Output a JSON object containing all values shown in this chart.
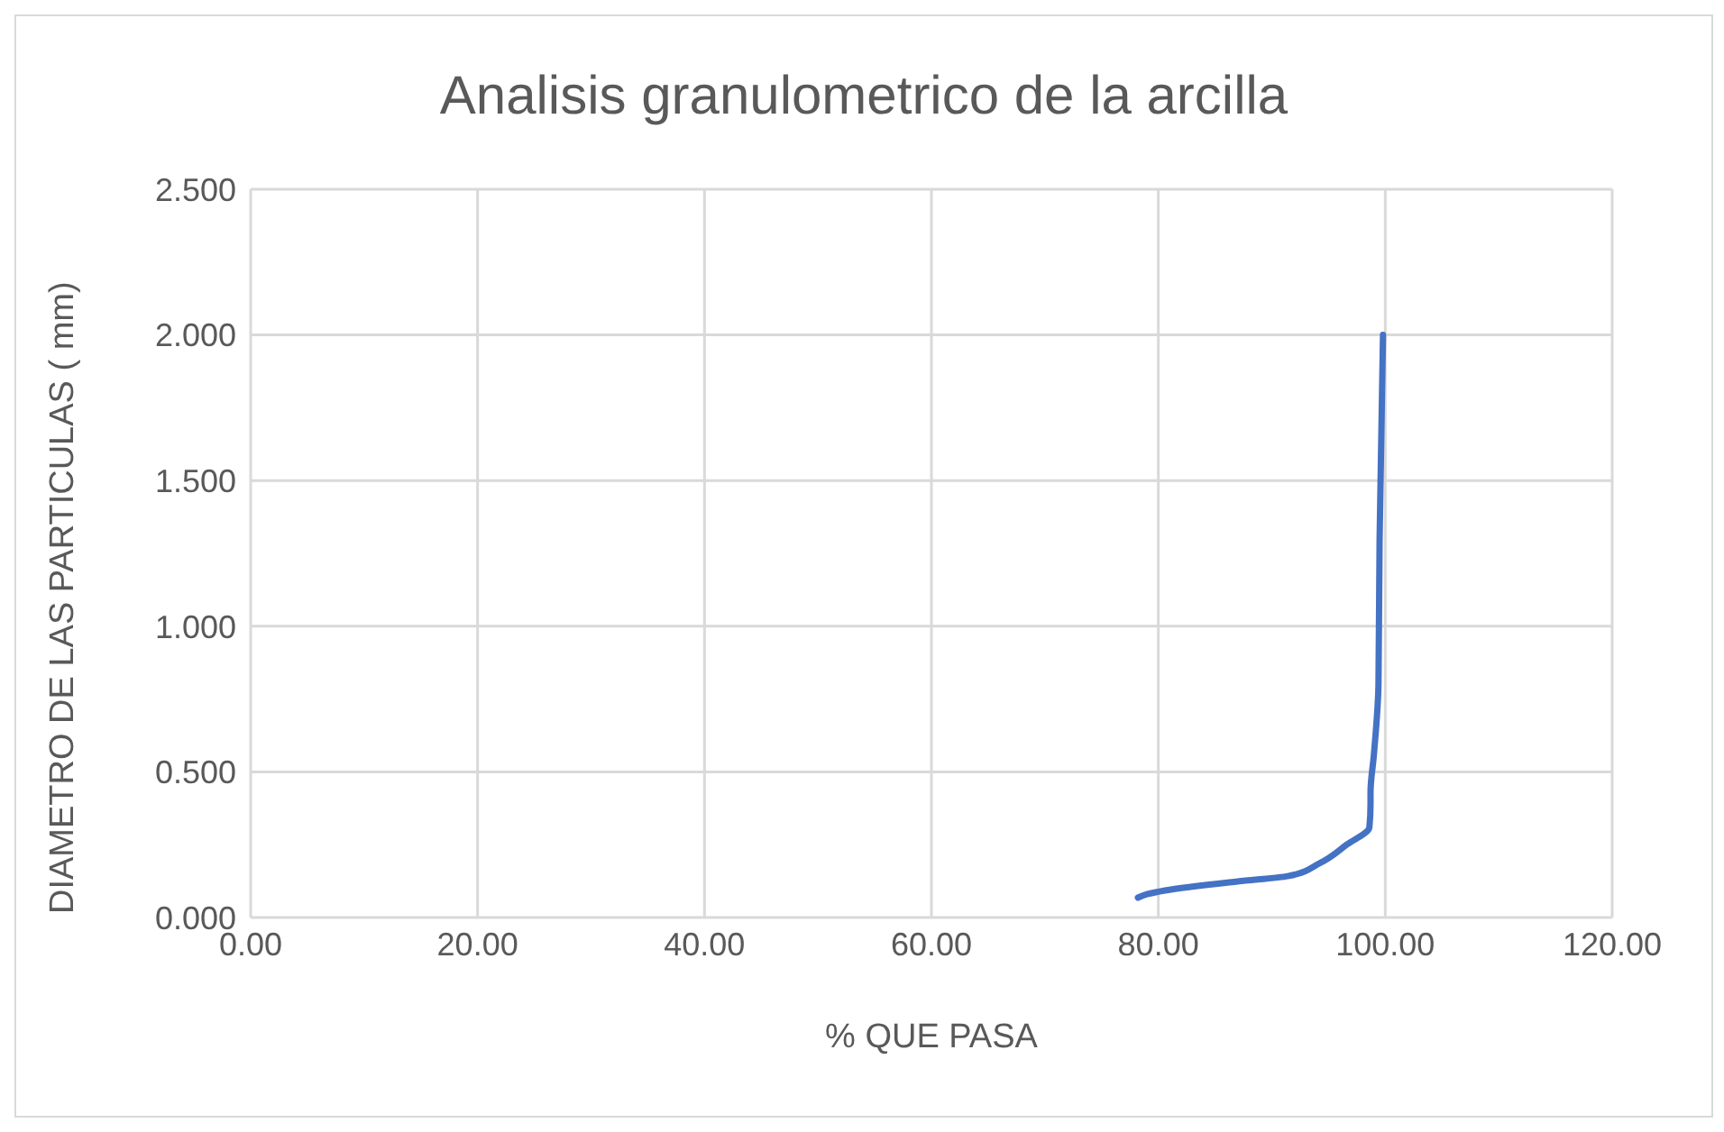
{
  "chart_data": {
    "type": "line",
    "title": "Analisis granulometrico de la arcilla",
    "xlabel": "% QUE PASA",
    "ylabel": "DIAMETRO DE LAS PARTICULAS ( mm)",
    "series": [
      {
        "color": "#4472c4",
        "x": [
          78.2,
          79.0,
          80.6,
          87.0,
          91.4,
          94.2,
          96.6,
          98.6,
          98.7,
          98.7,
          99.0,
          99.4,
          99.5,
          99.8
        ],
        "values": [
          0.068,
          0.08,
          0.093,
          0.124,
          0.142,
          0.186,
          0.25,
          0.31,
          0.39,
          0.43,
          0.56,
          0.8,
          1.3,
          2.0
        ]
      }
    ],
    "xlim": [
      0,
      120
    ],
    "xticks": [
      {
        "value": 0,
        "label": "0.00"
      },
      {
        "value": 20,
        "label": "20.00"
      },
      {
        "value": 40,
        "label": "40.00"
      },
      {
        "value": 60,
        "label": "60.00"
      },
      {
        "value": 80,
        "label": "80.00"
      },
      {
        "value": 100,
        "label": "100.00"
      },
      {
        "value": 120,
        "label": "120.00"
      }
    ],
    "ylim": [
      0,
      2.5
    ],
    "yticks": [
      {
        "value": 0,
        "label": "0.000"
      },
      {
        "value": 0.5,
        "label": "0.500"
      },
      {
        "value": 1,
        "label": "1.000"
      },
      {
        "value": 1.5,
        "label": "1.500"
      },
      {
        "value": 2,
        "label": "2.000"
      },
      {
        "value": 2.5,
        "label": "2.500"
      }
    ],
    "grid": true,
    "marker": "none",
    "line_style": "solid"
  }
}
